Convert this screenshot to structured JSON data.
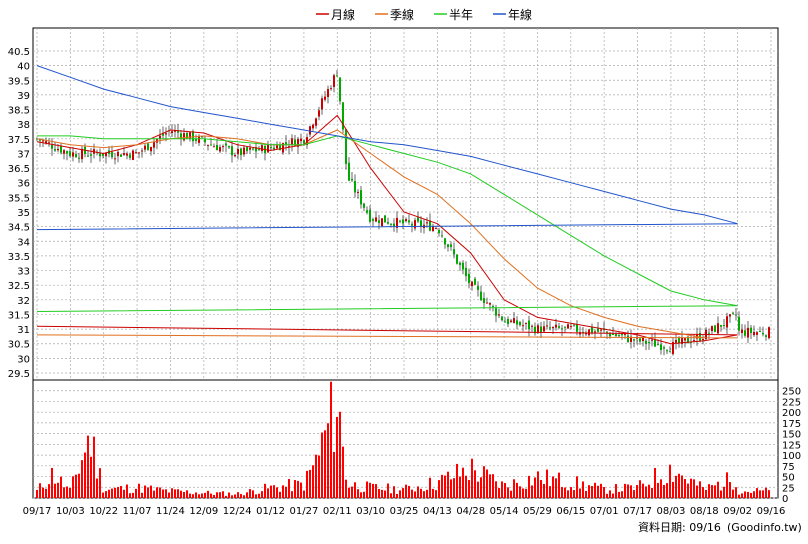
{
  "legend": {
    "items": [
      {
        "label": "月線",
        "color": "#cc0000"
      },
      {
        "label": "季線",
        "color": "#e07020"
      },
      {
        "label": "半年",
        "color": "#22cc22"
      },
      {
        "label": "年線",
        "color": "#2255cc"
      }
    ]
  },
  "footer": {
    "date_label": "資料日期: 09/16",
    "source": "(Goodinfo.tw)"
  },
  "colors": {
    "up": "#cc0000",
    "down": "#00aa00",
    "volume": "#ff0000",
    "grid": "#aaaaaa"
  },
  "chart_data": [
    {
      "type": "candlestick",
      "title": "",
      "y_ticks": [
        29.5,
        30,
        30.5,
        31,
        31.5,
        32,
        32.5,
        33,
        33.5,
        34,
        34.5,
        35,
        35.5,
        36,
        36.5,
        37,
        37.5,
        38,
        38.5,
        39,
        39.5,
        40,
        40.5
      ],
      "ylim": [
        29.5,
        40.5
      ],
      "x_tick_labels": [
        "09/17",
        "10/03",
        "10/22",
        "11/07",
        "11/24",
        "12/09",
        "12/24",
        "01/12",
        "01/27",
        "02/11",
        "03/10",
        "03/25",
        "04/13",
        "04/28",
        "05/14",
        "05/29",
        "06/15",
        "07/01",
        "07/17",
        "08/03",
        "08/18",
        "09/02",
        "09/16"
      ],
      "close_points": [
        [
          "09/17",
          37.5
        ],
        [
          "10/03",
          37.0
        ],
        [
          "10/22",
          37.0
        ],
        [
          "11/07",
          37.0
        ],
        [
          "11/24",
          37.8
        ],
        [
          "12/09",
          37.4
        ],
        [
          "12/24",
          37.0
        ],
        [
          "01/12",
          37.2
        ],
        [
          "01/27",
          37.5
        ],
        [
          "02/11",
          39.8
        ],
        [
          "02/20",
          36.2
        ],
        [
          "03/10",
          34.8
        ],
        [
          "03/25",
          34.6
        ],
        [
          "04/13",
          34.5
        ],
        [
          "04/28",
          32.5
        ],
        [
          "05/14",
          31.3
        ],
        [
          "05/29",
          31.0
        ],
        [
          "06/15",
          31.0
        ],
        [
          "07/01",
          30.9
        ],
        [
          "07/17",
          30.6
        ],
        [
          "08/03",
          30.4
        ],
        [
          "08/18",
          30.8
        ],
        [
          "09/02",
          31.5
        ],
        [
          "09/16",
          30.9
        ]
      ],
      "series": [
        {
          "name": "月線",
          "points": [
            [
              "09/17",
              37.4
            ],
            [
              "10/03",
              37.2
            ],
            [
              "10/22",
              37.0
            ],
            [
              "11/07",
              37.3
            ],
            [
              "11/24",
              37.8
            ],
            [
              "12/09",
              37.7
            ],
            [
              "12/24",
              37.3
            ],
            [
              "01/12",
              37.1
            ],
            [
              "01/27",
              37.3
            ],
            [
              "02/11",
              38.3
            ],
            [
              "03/10",
              36.5
            ],
            [
              "03/25",
              35.0
            ],
            [
              "04/13",
              34.6
            ],
            [
              "04/28",
              33.6
            ],
            [
              "05/14",
              32.0
            ],
            [
              "05/29",
              31.4
            ],
            [
              "06/15",
              31.2
            ],
            [
              "07/01",
              31.0
            ],
            [
              "07/17",
              30.8
            ],
            [
              "08/03",
              30.5
            ],
            [
              "08/18",
              30.6
            ],
            [
              "09/02",
              30.8
            ],
            [
              "09/16",
              31.1
            ]
          ]
        },
        {
          "name": "季線",
          "points": [
            [
              "09/17",
              37.5
            ],
            [
              "10/03",
              37.3
            ],
            [
              "10/22",
              37.2
            ],
            [
              "11/07",
              37.3
            ],
            [
              "11/24",
              37.5
            ],
            [
              "12/09",
              37.6
            ],
            [
              "12/24",
              37.5
            ],
            [
              "01/12",
              37.3
            ],
            [
              "01/27",
              37.3
            ],
            [
              "02/11",
              37.8
            ],
            [
              "03/10",
              37.0
            ],
            [
              "03/25",
              36.2
            ],
            [
              "04/13",
              35.6
            ],
            [
              "04/28",
              34.6
            ],
            [
              "05/14",
              33.4
            ],
            [
              "05/29",
              32.4
            ],
            [
              "06/15",
              31.8
            ],
            [
              "07/01",
              31.4
            ],
            [
              "07/17",
              31.1
            ],
            [
              "08/03",
              30.9
            ],
            [
              "08/18",
              30.7
            ],
            [
              "09/02",
              30.7
            ],
            [
              "09/16",
              30.8
            ]
          ]
        },
        {
          "name": "半年",
          "points": [
            [
              "09/17",
              37.6
            ],
            [
              "10/03",
              37.6
            ],
            [
              "10/22",
              37.5
            ],
            [
              "11/07",
              37.5
            ],
            [
              "11/24",
              37.5
            ],
            [
              "12/09",
              37.5
            ],
            [
              "12/24",
              37.4
            ],
            [
              "01/12",
              37.3
            ],
            [
              "01/27",
              37.3
            ],
            [
              "02/11",
              37.6
            ],
            [
              "03/10",
              37.3
            ],
            [
              "03/25",
              37.0
            ],
            [
              "04/13",
              36.7
            ],
            [
              "04/28",
              36.3
            ],
            [
              "05/14",
              35.6
            ],
            [
              "05/29",
              34.9
            ],
            [
              "06/15",
              34.2
            ],
            [
              "07/01",
              33.5
            ],
            [
              "07/17",
              32.9
            ],
            [
              "08/03",
              32.3
            ],
            [
              "08/18",
              32.0
            ],
            [
              "09/02",
              31.8
            ],
            [
              "09/16",
              31.6
            ]
          ]
        },
        {
          "name": "年線",
          "points": [
            [
              "09/17",
              40.0
            ],
            [
              "10/03",
              39.6
            ],
            [
              "10/22",
              39.2
            ],
            [
              "11/07",
              38.9
            ],
            [
              "11/24",
              38.6
            ],
            [
              "12/09",
              38.4
            ],
            [
              "12/24",
              38.2
            ],
            [
              "01/12",
              38.0
            ],
            [
              "01/27",
              37.8
            ],
            [
              "02/11",
              37.6
            ],
            [
              "03/10",
              37.4
            ],
            [
              "03/25",
              37.3
            ],
            [
              "04/13",
              37.1
            ],
            [
              "04/28",
              36.9
            ],
            [
              "05/14",
              36.6
            ],
            [
              "05/29",
              36.3
            ],
            [
              "06/15",
              36.0
            ],
            [
              "07/01",
              35.7
            ],
            [
              "07/17",
              35.4
            ],
            [
              "08/03",
              35.1
            ],
            [
              "08/18",
              34.9
            ],
            [
              "09/02",
              34.6
            ],
            [
              "09/16",
              34.4
            ]
          ]
        }
      ]
    },
    {
      "type": "bar",
      "title": "",
      "y_ticks": [
        0,
        25,
        50,
        75,
        100,
        125,
        150,
        175,
        200,
        225,
        250
      ],
      "ylim": [
        0,
        275
      ],
      "volume_points": [
        [
          "09/17",
          20
        ],
        [
          "09/25",
          70
        ],
        [
          "10/03",
          20
        ],
        [
          "10/14",
          180
        ],
        [
          "10/22",
          25
        ],
        [
          "11/07",
          30
        ],
        [
          "11/24",
          20
        ],
        [
          "12/09",
          15
        ],
        [
          "12/24",
          12
        ],
        [
          "01/12",
          30
        ],
        [
          "01/27",
          40
        ],
        [
          "02/01",
          100
        ],
        [
          "02/05",
          170
        ],
        [
          "02/11",
          280
        ],
        [
          "02/20",
          40
        ],
        [
          "03/10",
          30
        ],
        [
          "03/25",
          25
        ],
        [
          "04/13",
          45
        ],
        [
          "04/28",
          85
        ],
        [
          "05/14",
          35
        ],
        [
          "05/29",
          60
        ],
        [
          "06/15",
          45
        ],
        [
          "07/01",
          25
        ],
        [
          "07/17",
          30
        ],
        [
          "08/03",
          85
        ],
        [
          "08/18",
          25
        ],
        [
          "09/02",
          60
        ],
        [
          "09/16",
          20
        ]
      ]
    }
  ]
}
